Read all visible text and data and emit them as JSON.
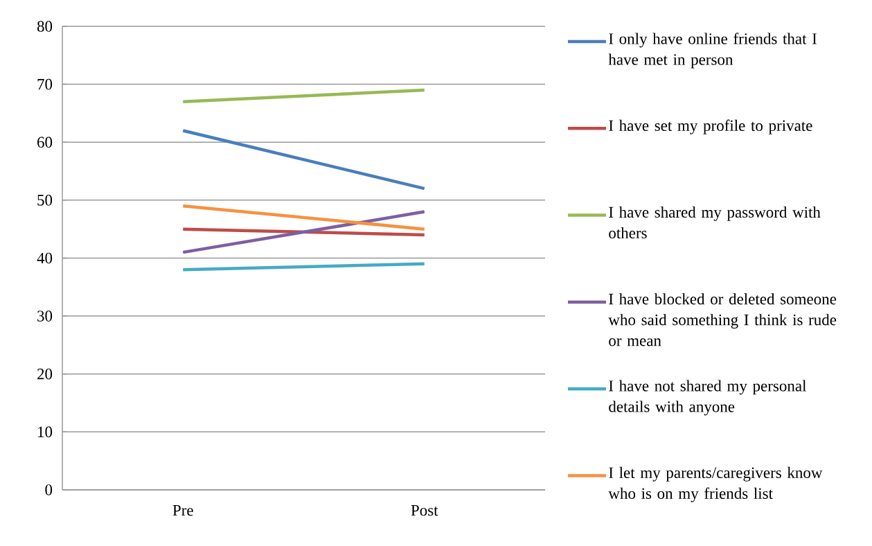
{
  "chart_data": {
    "type": "line",
    "categories": [
      "Pre",
      "Post"
    ],
    "series": [
      {
        "name": "I only have online friends that I have met in person",
        "color": "#4a7ebb",
        "values": [
          62,
          52
        ]
      },
      {
        "name": "I have set my profile to private",
        "color": "#be4b48",
        "values": [
          45,
          44
        ]
      },
      {
        "name": "I have shared my password with others",
        "color": "#98b954",
        "values": [
          67,
          69
        ]
      },
      {
        "name": "I have blocked or deleted someone who said something I think is rude or mean",
        "color": "#7d5fa0",
        "values": [
          41,
          48
        ]
      },
      {
        "name": "I have not shared my personal details with anyone",
        "color": "#46aac5",
        "values": [
          38,
          39
        ]
      },
      {
        "name": "I let my parents/caregivers know who is on my friends list",
        "color": "#f69240",
        "values": [
          49,
          45
        ]
      }
    ],
    "ylim": [
      0,
      80
    ],
    "yticks": [
      0,
      10,
      20,
      30,
      40,
      50,
      60,
      70,
      80
    ],
    "grid": "y",
    "legend": "right"
  }
}
